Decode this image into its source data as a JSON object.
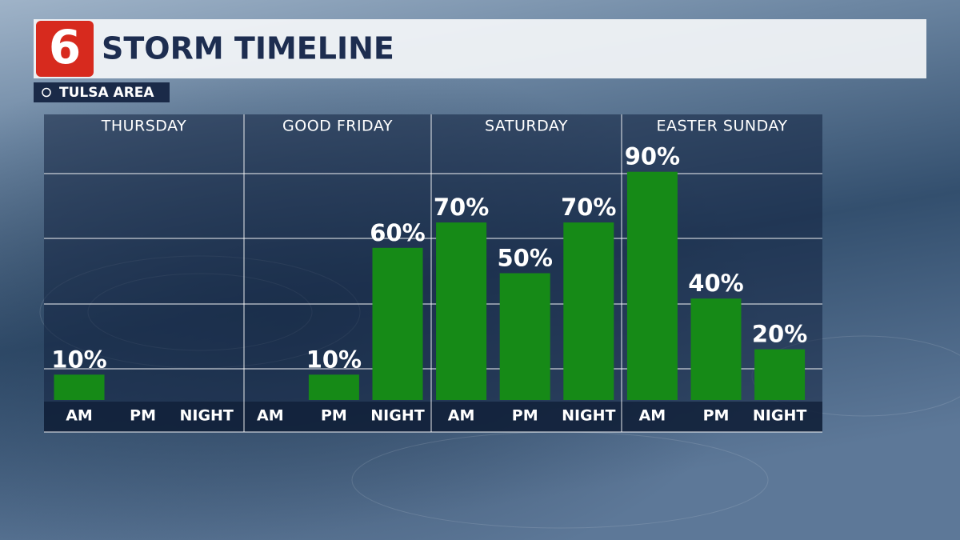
{
  "chart_data": {
    "type": "bar",
    "logo": "6",
    "title": "STORM TIMELINE",
    "subtitle": "TULSA AREA",
    "color": "#168a17",
    "groups": [
      {
        "name": "THURSDAY",
        "categories": [
          "AM",
          "PM",
          "NIGHT"
        ],
        "values": [
          10,
          null,
          null
        ],
        "value_labels": [
          "10%",
          null,
          null
        ]
      },
      {
        "name": "GOOD FRIDAY",
        "categories": [
          "AM",
          "PM",
          "NIGHT"
        ],
        "values": [
          null,
          10,
          60
        ],
        "value_labels": [
          null,
          "10%",
          "60%"
        ]
      },
      {
        "name": "SATURDAY",
        "categories": [
          "AM",
          "PM",
          "NIGHT"
        ],
        "values": [
          70,
          50,
          70
        ],
        "value_labels": [
          "70%",
          "50%",
          "70%"
        ]
      },
      {
        "name": "EASTER SUNDAY",
        "categories": [
          "AM",
          "PM",
          "NIGHT"
        ],
        "values": [
          90,
          40,
          20
        ],
        "value_labels": [
          "90%",
          "40%",
          "20%"
        ]
      }
    ]
  }
}
